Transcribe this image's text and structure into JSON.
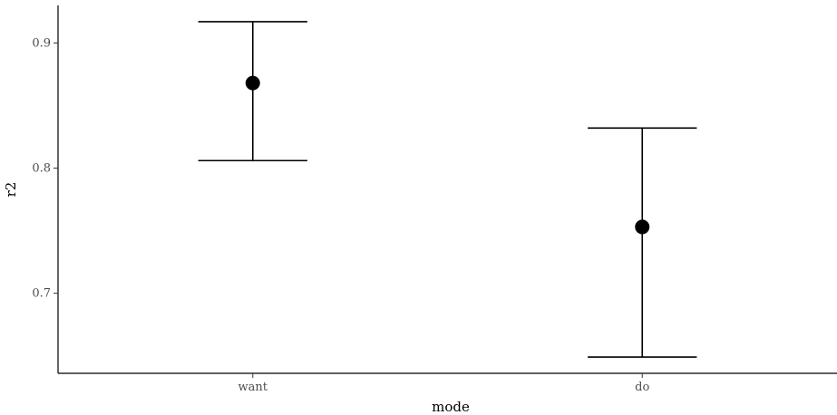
{
  "chart_data": {
    "type": "scatter",
    "subtype": "point-with-error-bars",
    "xlabel": "mode",
    "ylabel": "r2",
    "categories": [
      "want",
      "do"
    ],
    "points": [
      {
        "category": "want",
        "y": 0.868,
        "ymin": 0.806,
        "ymax": 0.917
      },
      {
        "category": "do",
        "y": 0.753,
        "ymin": 0.649,
        "ymax": 0.832
      }
    ],
    "ylim": [
      0.636,
      0.93
    ],
    "yticks": [
      0.7,
      0.8,
      0.9
    ],
    "yticks_labels": [
      "0.7",
      "0.8",
      "0.9"
    ],
    "grid": false,
    "legend": "none",
    "colors": {
      "point": "#000000",
      "errorbar": "#000000",
      "axis": "#000000"
    }
  }
}
